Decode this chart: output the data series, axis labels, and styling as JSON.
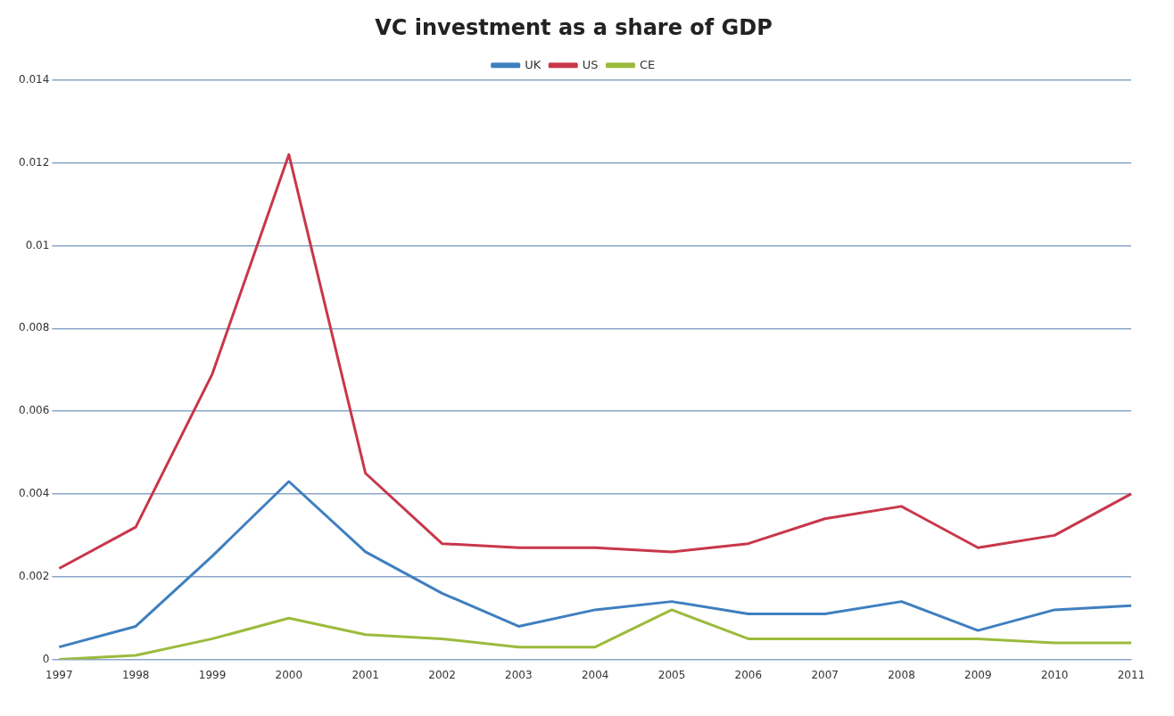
{
  "chart_data": {
    "type": "line",
    "title": "VC investment as a share of GDP",
    "categories": [
      "1997",
      "1998",
      "1999",
      "2000",
      "2001",
      "2002",
      "2003",
      "2004",
      "2005",
      "2006",
      "2007",
      "2008",
      "2009",
      "2010",
      "2011"
    ],
    "series": [
      {
        "name": "UK",
        "color": "#3f7fc0",
        "values": [
          0.0003,
          0.0008,
          0.0025,
          0.0043,
          0.0026,
          0.0016,
          0.0008,
          0.0012,
          0.0014,
          0.0011,
          0.0011,
          0.0014,
          0.0007,
          0.0012,
          0.0013
        ]
      },
      {
        "name": "US",
        "color": "#c8374a",
        "values": [
          0.0022,
          0.0032,
          0.0069,
          0.0122,
          0.0045,
          0.0028,
          0.0027,
          0.0027,
          0.0026,
          0.0028,
          0.0034,
          0.0037,
          0.0027,
          0.003,
          0.004
        ]
      },
      {
        "name": "CE",
        "color": "#9bbb3c",
        "values": [
          0.0,
          0.0001,
          0.0005,
          0.001,
          0.0006,
          0.0005,
          0.0003,
          0.0003,
          0.0012,
          0.0005,
          0.0005,
          0.0005,
          0.0005,
          0.0004,
          0.0004
        ]
      }
    ],
    "ylim": [
      0,
      0.014
    ],
    "yticks": [
      0,
      0.002,
      0.004,
      0.006,
      0.008,
      0.01,
      0.012,
      0.014
    ],
    "grid": "y",
    "legend": "top",
    "marker": "none",
    "line_style": "solid"
  }
}
